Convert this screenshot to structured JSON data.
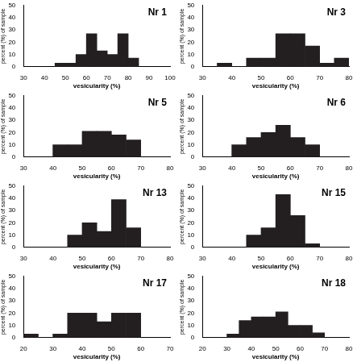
{
  "chart_data": [
    {
      "type": "histogram",
      "title": "Nr 1",
      "x_label": "vesicularity (%)",
      "y_label": "percent (%) of sample",
      "bins": [
        45,
        50,
        55,
        60,
        65,
        70,
        75,
        80,
        85
      ],
      "values": [
        3,
        3,
        10,
        27,
        13,
        10,
        27,
        7
      ],
      "color": "#231f20",
      "xlim": [
        30,
        100
      ],
      "xticks": [
        30,
        40,
        50,
        60,
        70,
        80,
        90,
        100
      ],
      "ylim": [
        0,
        50
      ],
      "yticks": [
        0,
        10,
        20,
        30,
        40,
        50
      ],
      "grid": false
    },
    {
      "type": "histogram",
      "title": "Nr 3",
      "x_label": "vesicularity (%)",
      "y_label": "percent (%) of sample",
      "bins": [
        35,
        40,
        45,
        50,
        55,
        60,
        65,
        70,
        75,
        80
      ],
      "values": [
        3,
        0,
        7,
        7,
        27,
        27,
        17,
        3,
        7
      ],
      "color": "#231f20",
      "xlim": [
        30,
        80
      ],
      "xticks": [
        30,
        40,
        50,
        60,
        70,
        80
      ],
      "ylim": [
        0,
        50
      ],
      "yticks": [
        0,
        10,
        20,
        30,
        40,
        50
      ],
      "grid": false
    },
    {
      "type": "histogram",
      "title": "Nr 5",
      "x_label": "vesicularity (%)",
      "y_label": "percent (%) of sample",
      "bins": [
        40,
        45,
        50,
        55,
        60,
        65,
        70
      ],
      "values": [
        10,
        10,
        21,
        21,
        18,
        14
      ],
      "color": "#231f20",
      "xlim": [
        30,
        80
      ],
      "xticks": [
        30,
        40,
        50,
        60,
        70,
        80
      ],
      "ylim": [
        0,
        50
      ],
      "yticks": [
        0,
        10,
        20,
        30,
        40,
        50
      ],
      "grid": false
    },
    {
      "type": "histogram",
      "title": "Nr 6",
      "x_label": "vesicularity (%)",
      "y_label": "percent (%) of sample",
      "bins": [
        40,
        45,
        50,
        55,
        60,
        65,
        70
      ],
      "values": [
        10,
        16,
        20,
        26,
        16,
        10
      ],
      "color": "#231f20",
      "xlim": [
        30,
        80
      ],
      "xticks": [
        30,
        40,
        50,
        60,
        70,
        80
      ],
      "ylim": [
        0,
        50
      ],
      "yticks": [
        0,
        10,
        20,
        30,
        40,
        50
      ],
      "grid": false
    },
    {
      "type": "histogram",
      "title": "Nr 13",
      "x_label": "vesicularity (%)",
      "y_label": "percent (%) of sample",
      "bins": [
        45,
        50,
        55,
        60,
        65,
        70
      ],
      "values": [
        10,
        20,
        13,
        39,
        16
      ],
      "color": "#231f20",
      "xlim": [
        30,
        80
      ],
      "xticks": [
        30,
        40,
        50,
        60,
        70,
        80
      ],
      "ylim": [
        0,
        50
      ],
      "yticks": [
        0,
        10,
        20,
        30,
        40,
        50
      ],
      "grid": false
    },
    {
      "type": "histogram",
      "title": "Nr 15",
      "x_label": "vesicularity (%)",
      "y_label": "percent (%) of sample",
      "bins": [
        45,
        50,
        55,
        60,
        65,
        70
      ],
      "values": [
        10,
        16,
        43,
        26,
        3
      ],
      "color": "#231f20",
      "xlim": [
        30,
        80
      ],
      "xticks": [
        30,
        40,
        50,
        60,
        70,
        80
      ],
      "ylim": [
        0,
        50
      ],
      "yticks": [
        0,
        10,
        20,
        30,
        40,
        50
      ],
      "grid": false
    },
    {
      "type": "histogram",
      "title": "Nr 17",
      "x_label": "vesicularity (%)",
      "y_label": "percent (%) of sample",
      "bins": [
        20,
        25,
        30,
        35,
        40,
        45,
        50,
        55,
        60
      ],
      "values": [
        3,
        0,
        3,
        20,
        20,
        13,
        20,
        20
      ],
      "color": "#231f20",
      "xlim": [
        20,
        70
      ],
      "xticks": [
        20,
        30,
        40,
        50,
        60,
        70
      ],
      "ylim": [
        0,
        50
      ],
      "yticks": [
        0,
        10,
        20,
        30,
        40,
        50
      ],
      "grid": false
    },
    {
      "type": "histogram",
      "title": "Nr 18",
      "x_label": "vesicularity (%)",
      "y_label": "percent (%) of sample",
      "bins": [
        30,
        35,
        40,
        45,
        50,
        55,
        60,
        65,
        70
      ],
      "values": [
        3,
        14,
        17,
        17,
        21,
        10,
        10,
        4
      ],
      "color": "#231f20",
      "xlim": [
        20,
        80
      ],
      "xticks": [
        20,
        30,
        40,
        50,
        60,
        70,
        80
      ],
      "ylim": [
        0,
        50
      ],
      "yticks": [
        0,
        10,
        20,
        30,
        40,
        50
      ],
      "grid": false
    }
  ]
}
